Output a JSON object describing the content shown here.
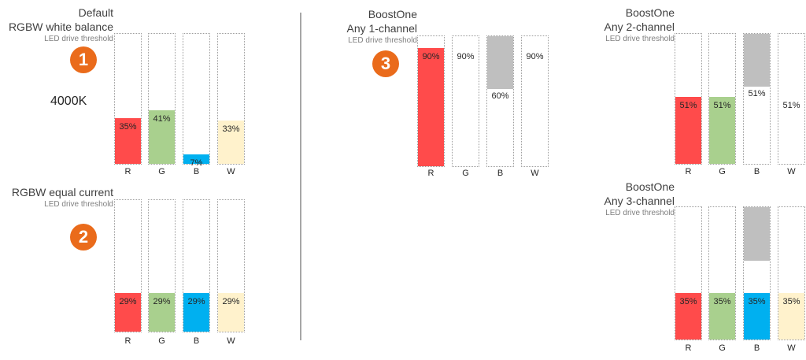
{
  "colors": {
    "R": "#ff4b4b",
    "G": "#a9d08e",
    "B": "#00b0f0",
    "W": "#fff2cc",
    "reserve": "#bfbfbf",
    "badge": "#ea6b1b"
  },
  "panels": [
    {
      "id": "p1",
      "title_lines": [
        "Default",
        "RGBW white balance"
      ],
      "subtitle": "LED drive threshold",
      "badge": "1",
      "note": "4000K",
      "channels": [
        "R",
        "G",
        "B",
        "W"
      ],
      "values": [
        "35%",
        "41%",
        "7%",
        "33%"
      ],
      "fills": [
        35,
        41,
        7,
        33
      ],
      "reserved": [
        0,
        0,
        0,
        0
      ]
    },
    {
      "id": "p2",
      "title_lines": [
        "RGBW equal current"
      ],
      "subtitle": "LED drive threshold",
      "badge": "2",
      "channels": [
        "R",
        "G",
        "B",
        "W"
      ],
      "values": [
        "29%",
        "29%",
        "29%",
        "29%"
      ],
      "fills": [
        29,
        29,
        29,
        29
      ],
      "reserved": [
        0,
        0,
        0,
        0
      ]
    },
    {
      "id": "p3",
      "title_lines": [
        "BoostOne",
        "Any 1-channel"
      ],
      "subtitle": "LED drive threshold",
      "badge": "3",
      "channels": [
        "R",
        "G",
        "B",
        "W"
      ],
      "values": [
        "90%",
        "90%",
        "60%",
        "90%"
      ],
      "fills": [
        90,
        0,
        0,
        0
      ],
      "reserved": [
        0,
        0,
        40,
        0
      ]
    },
    {
      "id": "p4",
      "title_lines": [
        "BoostOne",
        "Any 2-channel"
      ],
      "subtitle": "LED drive threshold",
      "channels": [
        "R",
        "G",
        "B",
        "W"
      ],
      "values": [
        "51%",
        "51%",
        "51%",
        "51%"
      ],
      "fills": [
        51,
        51,
        0,
        0
      ],
      "reserved": [
        0,
        0,
        40,
        0
      ]
    },
    {
      "id": "p5",
      "title_lines": [
        "BoostOne",
        "Any 3-channel"
      ],
      "subtitle": "LED drive threshold",
      "channels": [
        "R",
        "G",
        "B",
        "W"
      ],
      "values": [
        "35%",
        "35%",
        "35%",
        "35%"
      ],
      "fills": [
        35,
        35,
        35,
        35
      ],
      "reserved": [
        0,
        0,
        40,
        0
      ]
    }
  ]
}
